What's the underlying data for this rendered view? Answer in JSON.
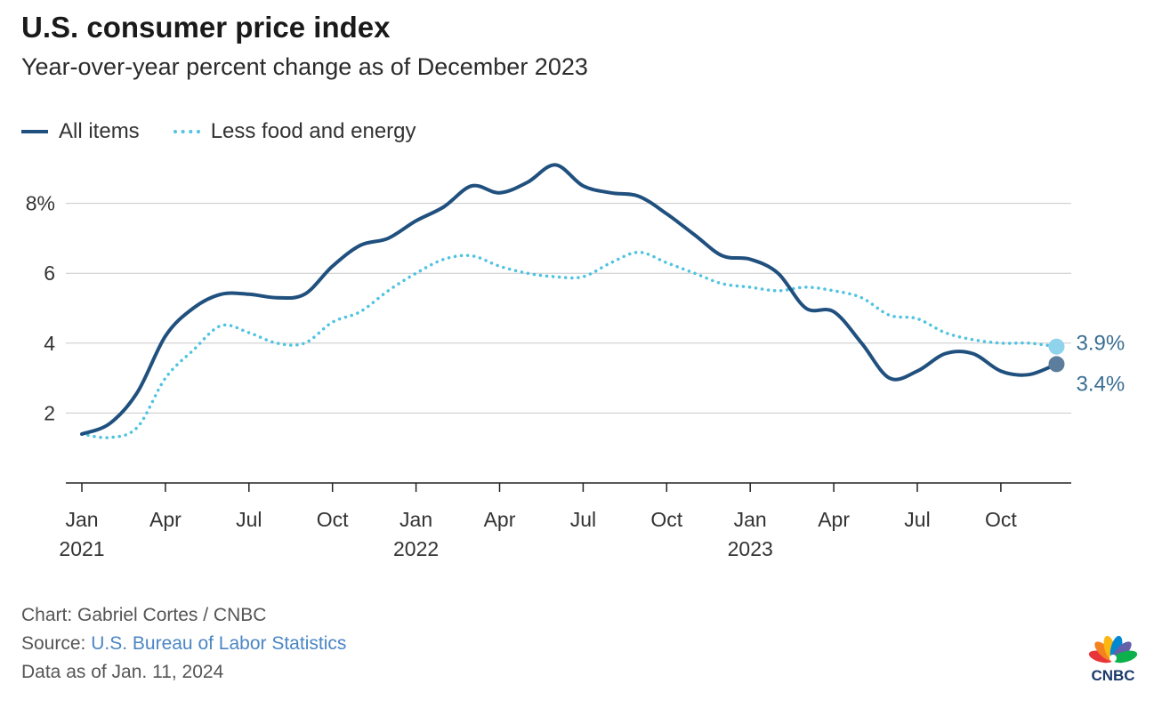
{
  "chart_data": {
    "type": "line",
    "title": "U.S. consumer price index",
    "subtitle": "Year-over-year percent change as of December 2023",
    "ylim": [
      0,
      9.5
    ],
    "yticks": [
      {
        "value": 2,
        "label": "2"
      },
      {
        "value": 4,
        "label": "4"
      },
      {
        "value": 6,
        "label": "6"
      },
      {
        "value": 8,
        "label": "8%"
      }
    ],
    "xticks": [
      {
        "index": 0,
        "label": "Jan",
        "year": "2021"
      },
      {
        "index": 3,
        "label": "Apr",
        "year": ""
      },
      {
        "index": 6,
        "label": "Jul",
        "year": ""
      },
      {
        "index": 9,
        "label": "Oct",
        "year": ""
      },
      {
        "index": 12,
        "label": "Jan",
        "year": "2022"
      },
      {
        "index": 15,
        "label": "Apr",
        "year": ""
      },
      {
        "index": 18,
        "label": "Jul",
        "year": ""
      },
      {
        "index": 21,
        "label": "Oct",
        "year": ""
      },
      {
        "index": 24,
        "label": "Jan",
        "year": "2023"
      },
      {
        "index": 27,
        "label": "Apr",
        "year": ""
      },
      {
        "index": 30,
        "label": "Jul",
        "year": ""
      },
      {
        "index": 33,
        "label": "Oct",
        "year": ""
      }
    ],
    "x": [
      "2021-01",
      "2021-02",
      "2021-03",
      "2021-04",
      "2021-05",
      "2021-06",
      "2021-07",
      "2021-08",
      "2021-09",
      "2021-10",
      "2021-11",
      "2021-12",
      "2022-01",
      "2022-02",
      "2022-03",
      "2022-04",
      "2022-05",
      "2022-06",
      "2022-07",
      "2022-08",
      "2022-09",
      "2022-10",
      "2022-11",
      "2022-12",
      "2023-01",
      "2023-02",
      "2023-03",
      "2023-04",
      "2023-05",
      "2023-06",
      "2023-07",
      "2023-08",
      "2023-09",
      "2023-10",
      "2023-11",
      "2023-12"
    ],
    "series": [
      {
        "name": "All items",
        "color": "#20507e",
        "style": "solid",
        "values": [
          1.4,
          1.7,
          2.6,
          4.2,
          5.0,
          5.4,
          5.4,
          5.3,
          5.4,
          6.2,
          6.8,
          7.0,
          7.5,
          7.9,
          8.5,
          8.3,
          8.6,
          9.1,
          8.5,
          8.3,
          8.2,
          7.7,
          7.1,
          6.5,
          6.4,
          6.0,
          5.0,
          4.9,
          4.0,
          3.0,
          3.2,
          3.7,
          3.7,
          3.2,
          3.1,
          3.4
        ],
        "end_label": "3.4%"
      },
      {
        "name": "Less food and energy",
        "color": "#4fc3e0",
        "style": "dotted",
        "values": [
          1.4,
          1.3,
          1.6,
          3.0,
          3.8,
          4.5,
          4.3,
          4.0,
          4.0,
          4.6,
          4.9,
          5.5,
          6.0,
          6.4,
          6.5,
          6.2,
          6.0,
          5.9,
          5.9,
          6.3,
          6.6,
          6.3,
          6.0,
          5.7,
          5.6,
          5.5,
          5.6,
          5.5,
          5.3,
          4.8,
          4.7,
          4.3,
          4.1,
          4.0,
          4.0,
          3.9
        ],
        "end_label": "3.9%"
      }
    ],
    "grid": true
  },
  "footer": {
    "credit": "Chart: Gabriel Cortes / CNBC",
    "source_prefix": "Source: ",
    "source_link": "U.S. Bureau of Labor Statistics",
    "data_as_of": "Data as of Jan. 11, 2024"
  },
  "logo": {
    "text": "CNBC",
    "colors": [
      "#e8353a",
      "#f58220",
      "#fcb711",
      "#0089d0",
      "#6460aa",
      "#0db14b"
    ]
  }
}
